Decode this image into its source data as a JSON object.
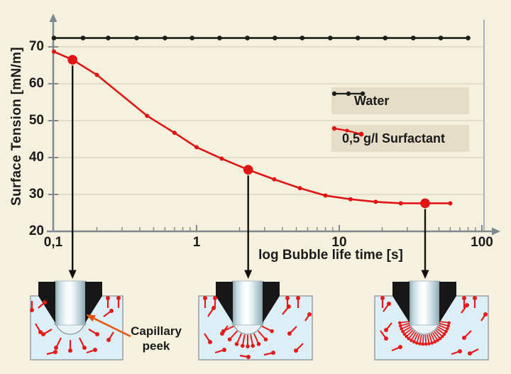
{
  "chart_data": {
    "type": "line",
    "title": "",
    "xlabel": "log Bubble life time [s]",
    "ylabel": "Surface Tension [mN/m]",
    "x_scale": "log",
    "xlim": [
      0.1,
      100
    ],
    "ylim": [
      20,
      76
    ],
    "x_tick_labels": [
      "0,1",
      "1",
      "10",
      "100"
    ],
    "x_tick_values": [
      0.1,
      1,
      10,
      100
    ],
    "y_ticks": [
      20,
      30,
      40,
      50,
      60,
      70
    ],
    "y_tick_labels": [
      "20",
      "30",
      "40",
      "50",
      "60",
      "70"
    ],
    "y_gridlines": [
      30,
      40,
      50,
      60,
      70
    ],
    "grid": "horizontal",
    "legend_position": "right-center",
    "series": [
      {
        "name": "Water",
        "color": "#1d1d1b",
        "marker": "dot",
        "x": [
          0.1,
          0.16,
          0.24,
          0.38,
          0.6,
          0.93,
          1.45,
          2.27,
          3.54,
          5.5,
          8.65,
          13.5,
          21,
          33,
          51.5,
          80
        ],
        "y": [
          72.4,
          72.4,
          72.4,
          72.4,
          72.4,
          72.4,
          72.4,
          72.4,
          72.4,
          72.4,
          72.4,
          72.4,
          72.4,
          72.4,
          72.4,
          72.4
        ]
      },
      {
        "name": "0,5 g/l Surfactant",
        "color": "#e11414",
        "marker": "dot",
        "x": [
          0.1,
          0.135,
          0.2,
          0.45,
          0.7,
          1.0,
          1.5,
          2.3,
          3.5,
          5.3,
          8,
          12,
          18,
          27,
          40,
          60
        ],
        "y": [
          68.7,
          66.5,
          62.4,
          51.3,
          46.7,
          42.8,
          39.7,
          36.7,
          34.1,
          31.7,
          29.7,
          28.7,
          28.0,
          27.6,
          27.6,
          27.6
        ],
        "highlighted_points": [
          1,
          7,
          14
        ]
      }
    ]
  },
  "annotations": {
    "capillary_label": {
      "line1": "Capillary",
      "line2": "peek"
    },
    "arrows": "three vertical black arrows from the highlighted surfactant points down to the capillary illustrations"
  },
  "illustrations": [
    {
      "id": "capillary-bubble-clean-surface"
    },
    {
      "id": "capillary-bubble-partially-covered"
    },
    {
      "id": "capillary-bubble-fully-covered"
    }
  ],
  "colors": {
    "background": "#f5f1de",
    "legend_box": "#e6ddc8",
    "text": "#1a1a1a",
    "axis": "#7e8a90",
    "gridline": "#ddd7c3",
    "plot_border": "#a9b2b6",
    "water_series": "#1d1d1b",
    "surfactant_series": "#e11414",
    "water_fill": "#ddeff6",
    "illustration_border": "#8a9298",
    "capillary_black": "#171717",
    "bubble_fill": "#e9f4f8",
    "molecule_red": "#e51a1a",
    "annotation_arrow": "#111111",
    "orange_arrow": "#e8560d"
  }
}
